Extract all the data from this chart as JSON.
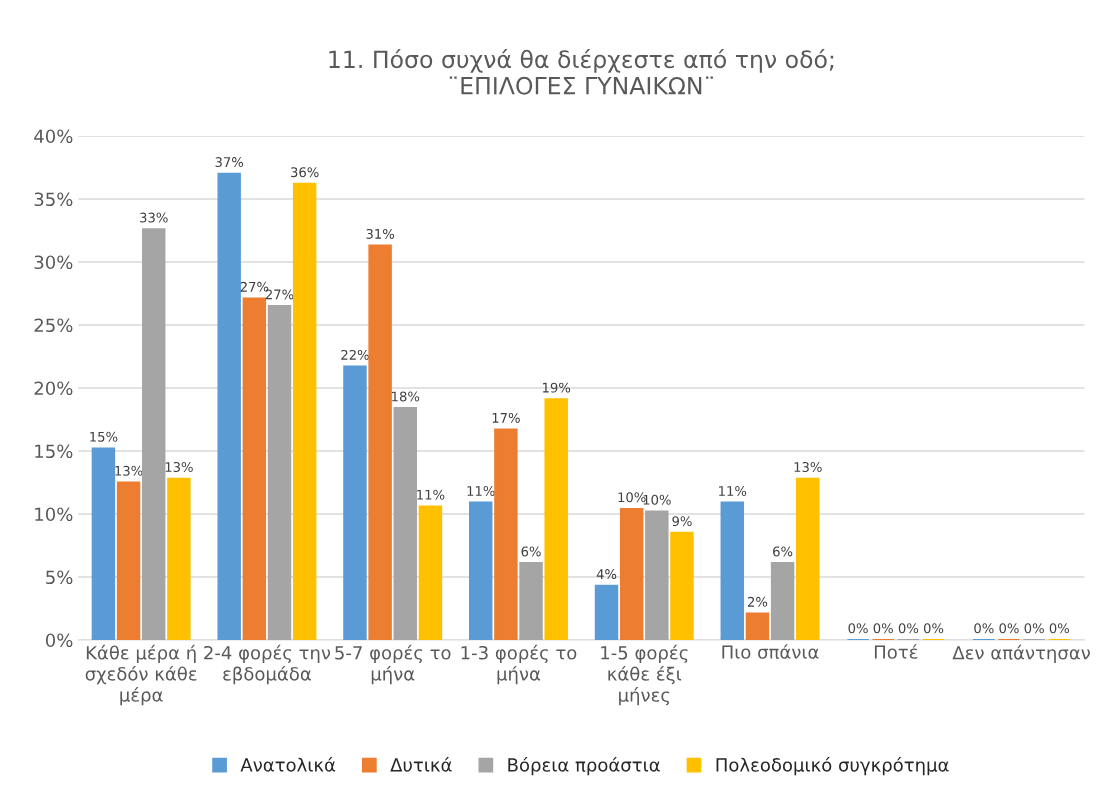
{
  "chart_data": {
    "type": "bar",
    "title": "11. Πόσο συχνά θα διέρχεστε από την οδό;\n¨ΕΠΙΛΟΓΕΣ ΓΥΝΑΙΚΩΝ¨",
    "categories": [
      "Κάθε μέρα ή σχεδόν κάθε μέρα",
      "2-4 φορές την εβδομάδα",
      "5-7 φορές το μήνα",
      "1-3 φορές το μήνα",
      "1-5 φορές κάθε έξι μήνες",
      "Πιο σπάνια",
      "Ποτέ",
      "Δεν απάντησαν"
    ],
    "series": [
      {
        "name": "Ανατολικά",
        "color": "#5b9bd5",
        "values": [
          15.2,
          37.0,
          21.7,
          10.9,
          4.3,
          10.9,
          0,
          0
        ],
        "value_labels": [
          "15%",
          "37%",
          "22%",
          "11%",
          "4%",
          "11%",
          "0%",
          "0%"
        ]
      },
      {
        "name": "Δυτικά",
        "color": "#ed7d31",
        "values": [
          12.5,
          27.1,
          31.3,
          16.7,
          10.4,
          2.1,
          0,
          0
        ],
        "value_labels": [
          "13%",
          "27%",
          "31%",
          "17%",
          "10%",
          "2%",
          "0%",
          "0%"
        ]
      },
      {
        "name": "Βόρεια προάστια",
        "color": "#a5a5a5",
        "values": [
          32.6,
          26.5,
          18.4,
          6.1,
          10.2,
          6.1,
          0,
          0
        ],
        "value_labels": [
          "33%",
          "27%",
          "18%",
          "6%",
          "10%",
          "6%",
          "0%",
          "0%"
        ]
      },
      {
        "name": "Πολεοδομικό συγκρότημα",
        "color": "#ffc000",
        "values": [
          12.8,
          36.2,
          10.6,
          19.1,
          8.5,
          12.8,
          0,
          0
        ],
        "value_labels": [
          "13%",
          "36%",
          "11%",
          "19%",
          "9%",
          "13%",
          "0%",
          "0%"
        ]
      }
    ],
    "ylim": [
      0,
      40
    ],
    "yticks": [
      {
        "value": 0,
        "label": "0%"
      },
      {
        "value": 5,
        "label": "5%"
      },
      {
        "value": 10,
        "label": "10%"
      },
      {
        "value": 15,
        "label": "15%"
      },
      {
        "value": 20,
        "label": "20%"
      },
      {
        "value": 25,
        "label": "25%"
      },
      {
        "value": 30,
        "label": "30%"
      },
      {
        "value": 35,
        "label": "35%"
      },
      {
        "value": 40,
        "label": "40%"
      }
    ],
    "grid": "y",
    "legend": "bottom"
  }
}
